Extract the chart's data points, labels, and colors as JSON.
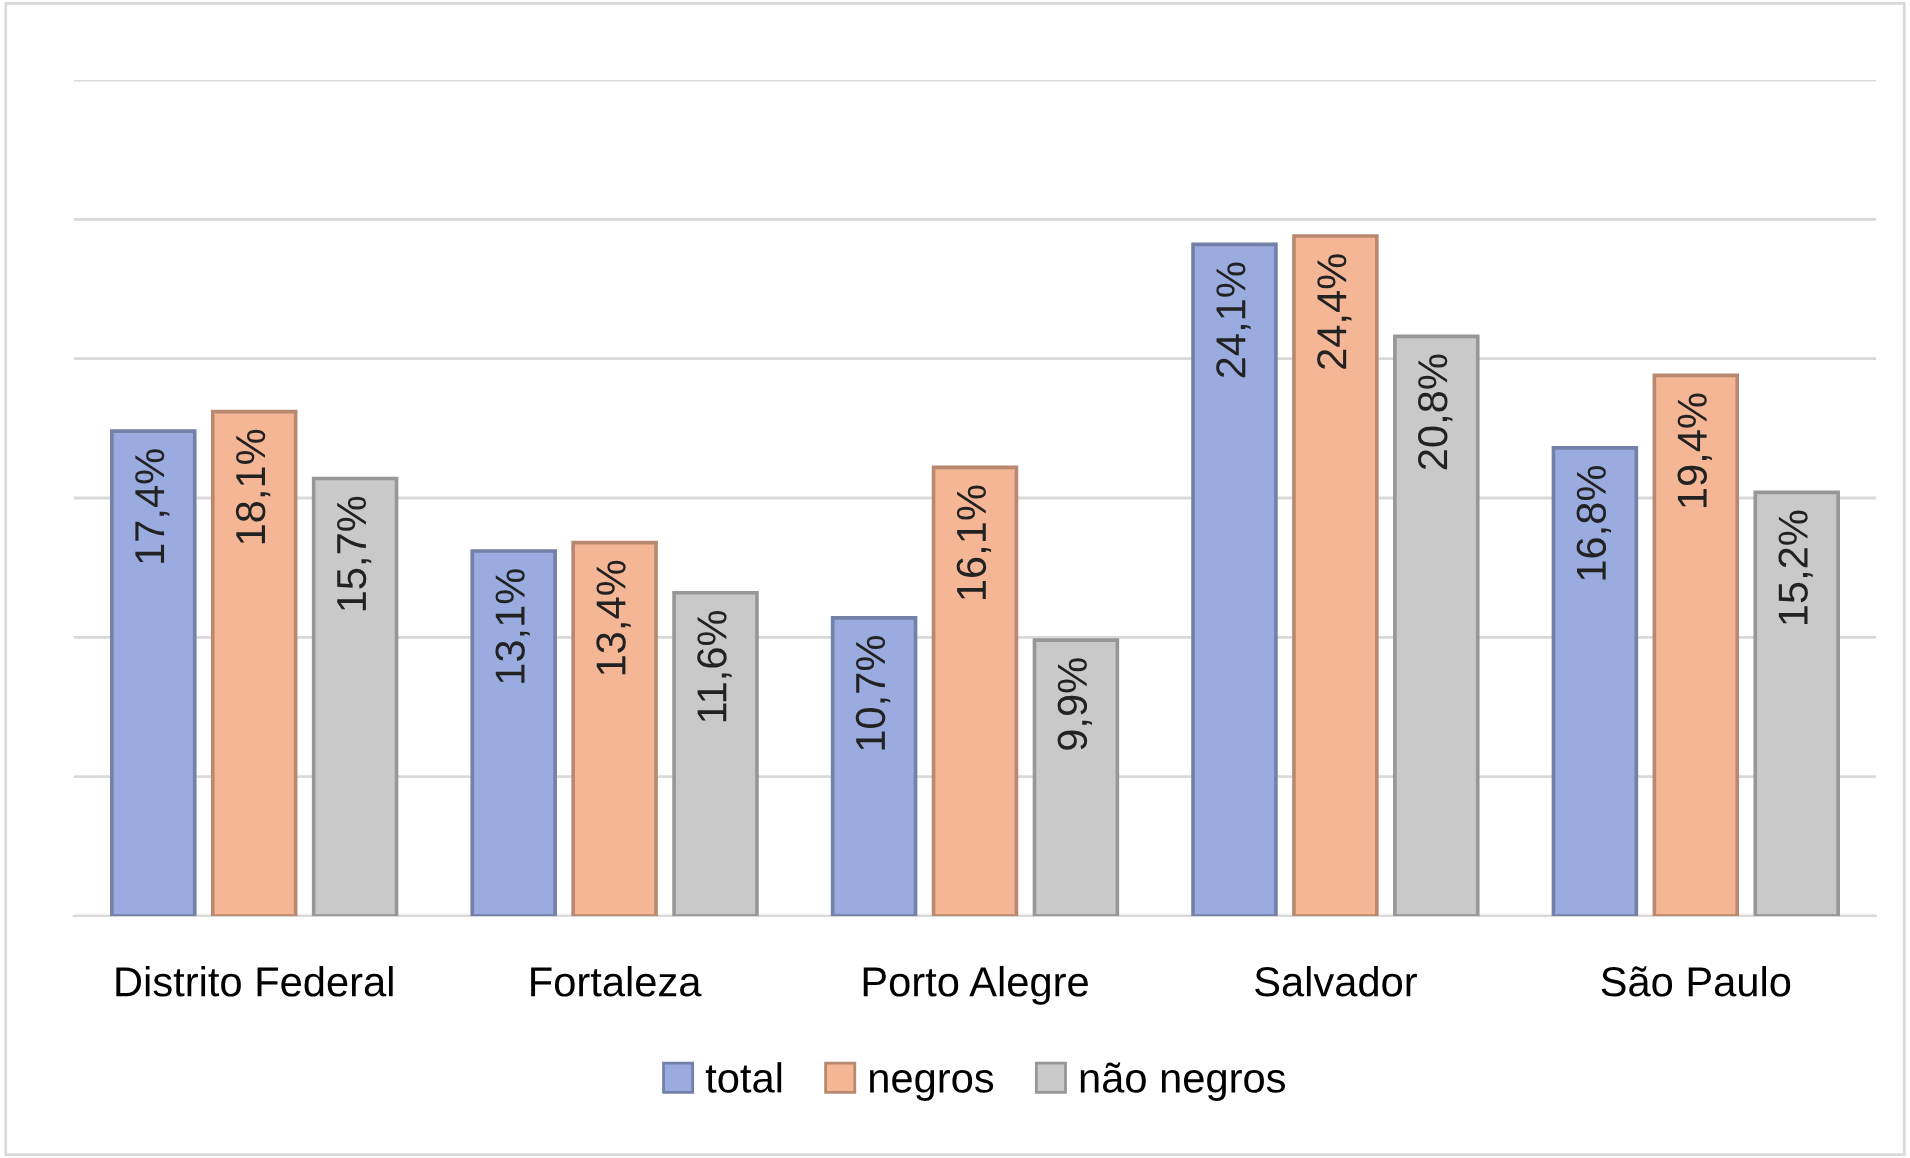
{
  "chart_data": {
    "type": "bar",
    "categories": [
      "Distrito Federal",
      "Fortaleza",
      "Porto Alegre",
      "Salvador",
      "São Paulo"
    ],
    "series": [
      {
        "name": "total",
        "color": "#9aabdf",
        "values": [
          17.4,
          13.1,
          10.7,
          24.1,
          16.8
        ],
        "value_labels": [
          "17,4%",
          "13,1%",
          "10,7%",
          "24,1%",
          "16,8%"
        ]
      },
      {
        "name": "negros",
        "color": "#f5b696",
        "values": [
          18.1,
          13.4,
          16.1,
          24.4,
          19.4
        ],
        "value_labels": [
          "18,1%",
          "13,4%",
          "16,1%",
          "24,4%",
          "19,4%"
        ]
      },
      {
        "name": "não negros",
        "color": "#c9c9c9",
        "values": [
          15.7,
          11.6,
          9.9,
          20.8,
          15.2
        ],
        "value_labels": [
          "15,7%",
          "11,6%",
          "9,9%",
          "20,8%",
          "15,2%"
        ]
      }
    ],
    "ylim": [
      0,
      30
    ],
    "yticks": [
      {
        "value": 0,
        "label": null
      },
      {
        "value": 5,
        "label": null
      },
      {
        "value": 10,
        "label": null
      },
      {
        "value": 15,
        "label": null
      },
      {
        "value": 20,
        "label": null
      },
      {
        "value": 25,
        "label": null
      },
      {
        "value": 30,
        "label": null
      }
    ],
    "tick_labels": "x",
    "grid": "y",
    "legend": "bottom"
  }
}
